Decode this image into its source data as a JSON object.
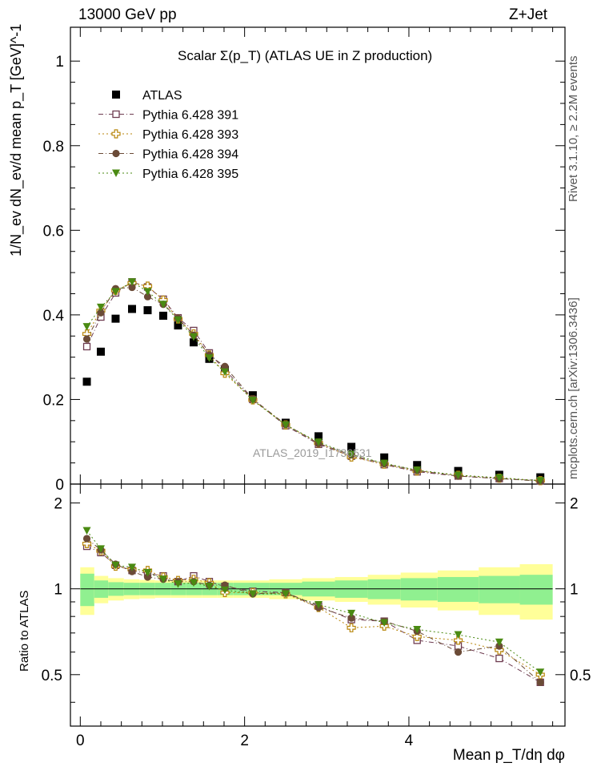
{
  "header": {
    "energy_label": "13000 GeV pp",
    "process_label": "Z+Jet",
    "rivet_label": "Rivet 3.1.10, ≥ 2.2M events",
    "mcplots_label": "mcplots.cern.ch [arXiv:1306.3436]",
    "analysis_watermark": "ATLAS_2019_I1736531"
  },
  "colors": {
    "atlas": "#000000",
    "p391": "#6e3c50",
    "p393": "#b8860b",
    "p394": "#6b4b37",
    "p395": "#4a8a12",
    "band_inner": "#90f090",
    "band_outer": "#ffff99"
  },
  "chart_data": [
    {
      "type": "scatter",
      "title": "Scalar Σ(p_T) (ATLAS UE in Z production)",
      "ylabel": "1/N_ev dN_ev/d mean p_T [GeV]^-1",
      "xlabel": "",
      "xlim": [
        -0.12,
        5.9
      ],
      "ylim": [
        0,
        1.08
      ],
      "yticks": [
        "0",
        "0.2",
        "0.4",
        "0.6",
        "0.8",
        "1"
      ],
      "legend_position": "top-left",
      "x": [
        0.08,
        0.25,
        0.43,
        0.63,
        0.82,
        1.01,
        1.19,
        1.38,
        1.57,
        1.76,
        2.1,
        2.5,
        2.9,
        3.3,
        3.7,
        4.1,
        4.6,
        5.1,
        5.6
      ],
      "series": [
        {
          "name": "ATLAS",
          "marker": "square",
          "values": [
            0.242,
            0.313,
            0.391,
            0.414,
            0.411,
            0.398,
            0.375,
            0.335,
            0.296,
            0.27,
            0.21,
            0.145,
            0.113,
            0.088,
            0.063,
            0.045,
            0.031,
            0.022,
            0.016
          ]
        },
        {
          "name": "Pythia 6.428 391",
          "marker": "open-square",
          "values": [
            0.325,
            0.395,
            0.452,
            0.478,
            0.466,
            0.437,
            0.393,
            0.363,
            0.31,
            0.27,
            0.2,
            0.138,
            0.094,
            0.066,
            0.046,
            0.029,
            0.019,
            0.013,
            0.008
          ]
        },
        {
          "name": "Pythia 6.428 393",
          "marker": "open-cross",
          "values": [
            0.355,
            0.41,
            0.458,
            0.475,
            0.468,
            0.435,
            0.39,
            0.355,
            0.305,
            0.262,
            0.199,
            0.14,
            0.097,
            0.064,
            0.047,
            0.031,
            0.021,
            0.014,
            0.008
          ]
        },
        {
          "name": "Pythia 6.428 394",
          "marker": "circle",
          "values": [
            0.343,
            0.405,
            0.462,
            0.465,
            0.443,
            0.425,
            0.392,
            0.352,
            0.305,
            0.278,
            0.201,
            0.141,
            0.096,
            0.069,
            0.048,
            0.032,
            0.019,
            0.013,
            0.007
          ]
        },
        {
          "name": "Pythia 6.428 395",
          "marker": "triangle-down",
          "values": [
            0.372,
            0.418,
            0.455,
            0.478,
            0.455,
            0.425,
            0.388,
            0.348,
            0.298,
            0.265,
            0.198,
            0.14,
            0.099,
            0.07,
            0.049,
            0.033,
            0.021,
            0.015,
            0.008
          ]
        }
      ]
    },
    {
      "type": "scatter",
      "title": "",
      "ylabel": "Ratio to ATLAS",
      "xlabel": "Mean p_T/dη dφ",
      "xlim": [
        -0.12,
        5.9
      ],
      "ylim": [
        0.33,
        2.33
      ],
      "xticks": [
        "0",
        "2",
        "4"
      ],
      "yticks": [
        "0.5",
        "1",
        "2"
      ],
      "band_x_edges": [
        0.0,
        0.17,
        0.34,
        0.53,
        0.72,
        0.91,
        1.1,
        1.29,
        1.48,
        1.67,
        1.86,
        2.3,
        2.7,
        3.1,
        3.5,
        3.9,
        4.35,
        4.85,
        5.35,
        5.75
      ],
      "band_inner": [
        0.13,
        0.07,
        0.055,
        0.05,
        0.05,
        0.05,
        0.05,
        0.05,
        0.05,
        0.05,
        0.05,
        0.05,
        0.06,
        0.07,
        0.08,
        0.09,
        0.1,
        0.11,
        0.12
      ],
      "band_outer": [
        0.19,
        0.11,
        0.09,
        0.08,
        0.075,
        0.07,
        0.07,
        0.07,
        0.07,
        0.07,
        0.07,
        0.08,
        0.09,
        0.1,
        0.12,
        0.14,
        0.16,
        0.19,
        0.22
      ],
      "x": [
        0.08,
        0.25,
        0.43,
        0.63,
        0.82,
        1.01,
        1.19,
        1.38,
        1.57,
        1.76,
        2.1,
        2.5,
        2.9,
        3.3,
        3.7,
        4.1,
        4.6,
        5.1,
        5.6
      ],
      "series": [
        {
          "name": "Pythia 6.428 391",
          "marker": "open-square",
          "values": [
            1.41,
            1.34,
            1.21,
            1.16,
            1.13,
            1.11,
            1.06,
            1.11,
            1.06,
            1.02,
            0.98,
            0.97,
            0.87,
            0.78,
            0.77,
            0.66,
            0.63,
            0.57,
            0.47
          ]
        },
        {
          "name": "Pythia 6.428 393",
          "marker": "open-cross",
          "values": [
            1.44,
            1.36,
            1.2,
            1.17,
            1.16,
            1.1,
            1.07,
            1.08,
            1.05,
            0.97,
            0.97,
            0.96,
            0.86,
            0.73,
            0.74,
            0.68,
            0.66,
            0.61,
            0.5
          ]
        },
        {
          "name": "Pythia 6.428 394",
          "marker": "circle",
          "values": [
            1.5,
            1.37,
            1.22,
            1.15,
            1.1,
            1.08,
            1.06,
            1.06,
            1.03,
            1.03,
            0.96,
            0.97,
            0.86,
            0.79,
            0.77,
            0.71,
            0.6,
            0.63,
            0.47
          ]
        },
        {
          "name": "Pythia 6.428 395",
          "marker": "triangle-down",
          "values": [
            1.6,
            1.38,
            1.21,
            1.19,
            1.14,
            1.08,
            1.04,
            1.05,
            1.02,
            0.99,
            0.96,
            0.96,
            0.88,
            0.82,
            0.76,
            0.72,
            0.69,
            0.65,
            0.51
          ]
        }
      ]
    }
  ]
}
